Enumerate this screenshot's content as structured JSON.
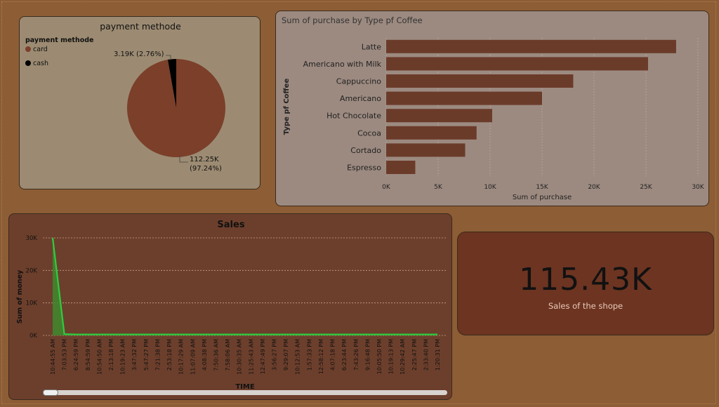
{
  "chart_data": [
    {
      "type": "pie",
      "title": "payment methode",
      "legend_title": "payment methode",
      "legend_position": "top-left",
      "slices": [
        {
          "name": "card",
          "value": 112.25,
          "value_label": "112.25K",
          "percent_label": "(97.24%)",
          "color": "#7b3f2a"
        },
        {
          "name": "cash",
          "value": 3.19,
          "value_label": "3.19K (2.76%)",
          "percent_label": "",
          "color": "#000000"
        }
      ]
    },
    {
      "type": "bar",
      "orientation": "horizontal",
      "title": "Sum of purchase by Type pf Coffee",
      "xlabel": "Sum of purchase",
      "ylabel": "Type pf Coffee",
      "categories": [
        "Latte",
        "Americano with Milk",
        "Cappuccino",
        "Americano",
        "Hot Chocolate",
        "Cocoa",
        "Cortado",
        "Espresso"
      ],
      "values": [
        27900,
        25200,
        18000,
        15000,
        10200,
        8700,
        7600,
        2800
      ],
      "xlim": [
        0,
        30000
      ],
      "xticks": [
        "0K",
        "5K",
        "10K",
        "15K",
        "20K",
        "25K",
        "30K"
      ],
      "bar_color": "#6b3b2a",
      "grid": true
    },
    {
      "type": "area",
      "title": "Sales",
      "xlabel": "TIME",
      "ylabel": "Sum of money",
      "ylim": [
        0,
        30000
      ],
      "yticks": [
        "0K",
        "10K",
        "20K",
        "30K"
      ],
      "x_labels": [
        "10:44:55 AM",
        "7:03:53 PM",
        "6:24:59 PM",
        "8:54:59 PM",
        "10:54:50 AM",
        "2:13:18 PM",
        "10:19:23 AM",
        "3:47:32 PM",
        "5:47:27 PM",
        "7:21:38 PM",
        "2:53:18 PM",
        "10:17:29 AM",
        "11:07:09 AM",
        "4:08:38 PM",
        "7:50:36 AM",
        "7:58:06 AM",
        "10:30:35 AM",
        "11:25:43 AM",
        "12:47:49 PM",
        "3:56:27 PM",
        "9:29:07 PM",
        "10:12:53 AM",
        "1:57:33 PM",
        "12:58:12 PM",
        "4:07:18 PM",
        "6:23:44 PM",
        "7:43:26 PM",
        "9:16:48 PM",
        "10:05:50 PM",
        "10:19:13 PM",
        "10:29:42 AM",
        "2:25:47 PM",
        "2:33:40 PM",
        "1:20:31 PM"
      ],
      "values": [
        30000,
        400,
        300,
        300,
        300,
        300,
        300,
        300,
        300,
        300,
        300,
        300,
        300,
        300,
        300,
        300,
        300,
        300,
        300,
        300,
        300,
        300,
        300,
        300,
        300,
        300,
        300,
        300,
        300,
        300,
        300,
        300,
        300,
        300
      ],
      "line_color": "#2ecc40",
      "grid": true
    }
  ],
  "kpi": {
    "value": "115.43K",
    "label": "Sales of the shope"
  }
}
